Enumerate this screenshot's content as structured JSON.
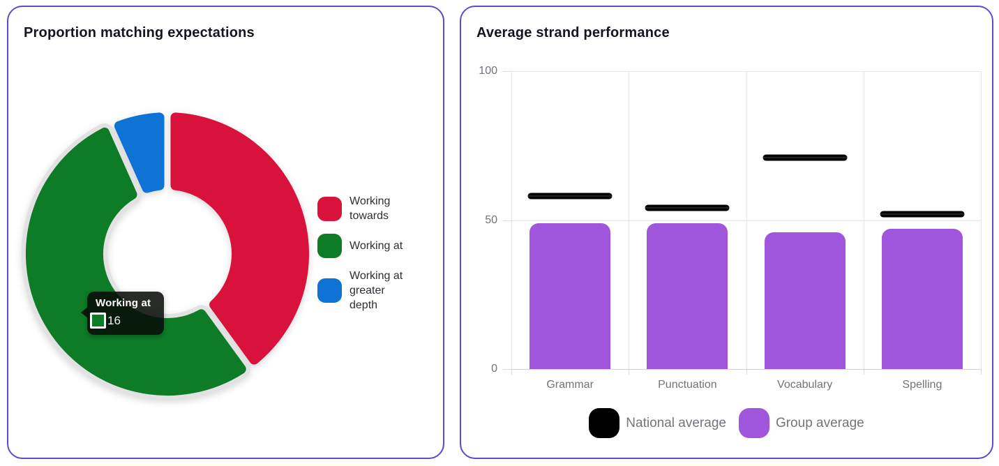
{
  "donut_panel": {
    "title": "Proportion matching expectations",
    "tooltip": {
      "title": "Working at",
      "value": "16"
    },
    "legend": [
      {
        "label": "Working towards",
        "lines": "Working\ntowards",
        "color": "#d8123a"
      },
      {
        "label": "Working at",
        "lines": "Working at",
        "color": "#0e7c27"
      },
      {
        "label": "Working at greater depth",
        "lines": "Working at\ngreater\ndepth",
        "color": "#0e73d4"
      }
    ]
  },
  "bar_panel": {
    "title": "Average strand performance",
    "legend": [
      {
        "label": "National average",
        "color": "#000000",
        "shape": "pill-marker"
      },
      {
        "label": "Group average",
        "color": "#a055dd",
        "shape": "bar"
      }
    ]
  },
  "chart_data": [
    {
      "type": "pie",
      "subtype": "donut",
      "title": "Proportion matching expectations",
      "start_angle_deg": 0,
      "segments": [
        {
          "label": "Working towards",
          "value": 12,
          "color": "#d8123a",
          "highlighted": false
        },
        {
          "label": "Working at",
          "value": 16,
          "color": "#0e7c27",
          "highlighted": true
        },
        {
          "label": "Working at greater depth",
          "value": 2,
          "color": "#0e73d4",
          "highlighted": false
        }
      ],
      "tooltip_shown": {
        "segment": "Working at",
        "value": 16
      },
      "legend_position": "right"
    },
    {
      "type": "bar",
      "title": "Average strand performance",
      "categories": [
        "Grammar",
        "Punctuation",
        "Vocabulary",
        "Spelling"
      ],
      "series": [
        {
          "name": "National average",
          "style": "dash-marker",
          "color": "#000000",
          "values": [
            58,
            54,
            71,
            52
          ]
        },
        {
          "name": "Group average",
          "style": "bar",
          "color": "#a055dd",
          "values": [
            49,
            49,
            46,
            47
          ]
        }
      ],
      "ylim": [
        0,
        100
      ],
      "yticks": [
        0,
        50,
        100
      ],
      "grid": true,
      "legend_position": "bottom"
    }
  ],
  "colors": {
    "panel_border": "#5b4ccb",
    "grid": "#e4e4e7",
    "axis_text": "#6f737b",
    "halo": "#e2e2e2",
    "bar_purple": "#a055dd",
    "national_black": "#000000"
  }
}
